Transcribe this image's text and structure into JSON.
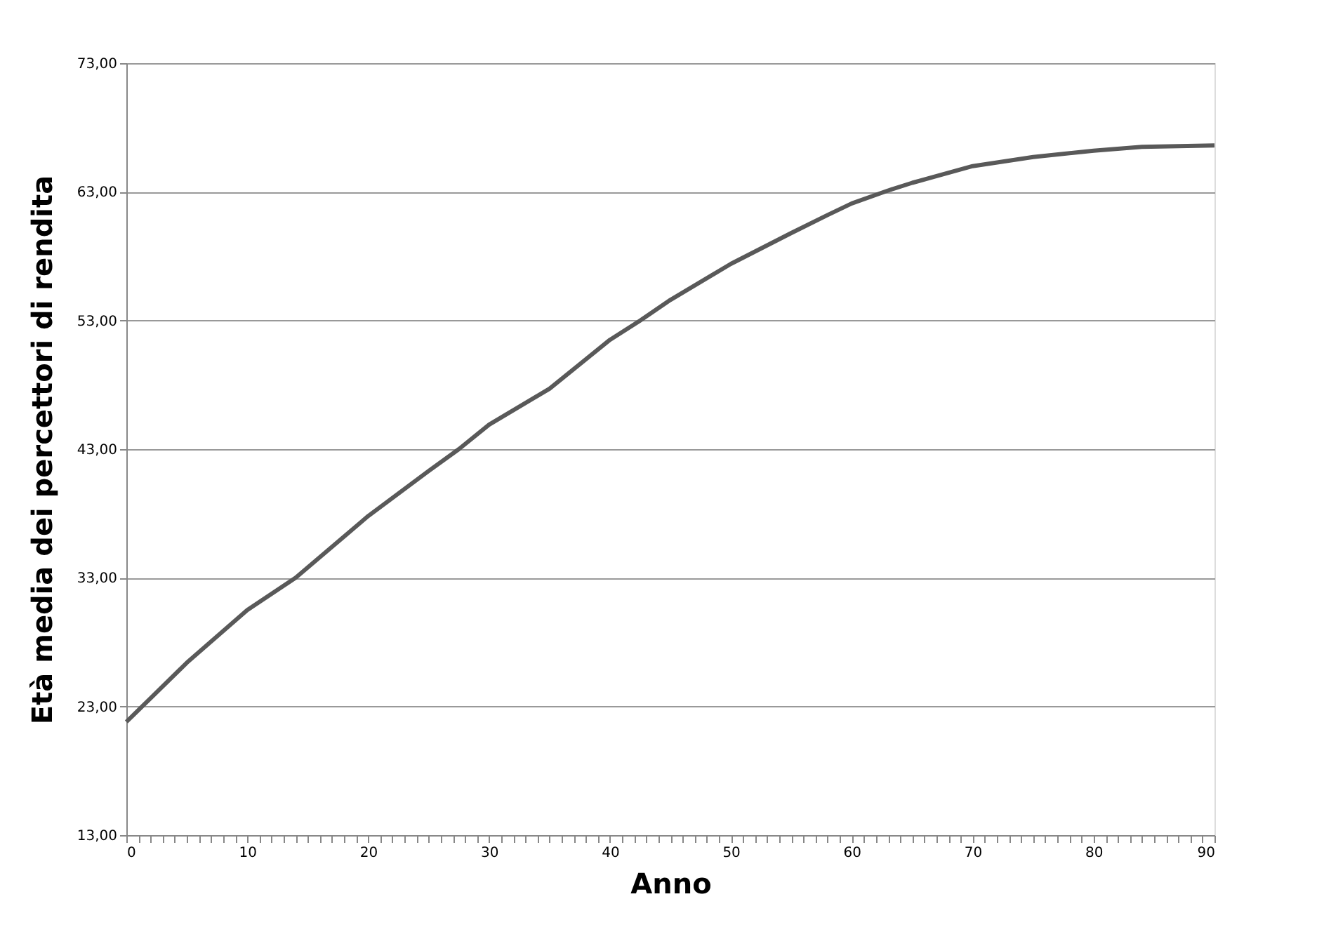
{
  "chart_data": {
    "type": "line",
    "xlabel": "Anno",
    "ylabel": "Età media dei percettori di rendita",
    "x": [
      0,
      5,
      10,
      14,
      20,
      25,
      27.5,
      30,
      35,
      40,
      42.5,
      45,
      50,
      55,
      58,
      60,
      63,
      65,
      70,
      75,
      80,
      84,
      90
    ],
    "series": [
      {
        "color": "#595959",
        "values": [
          21.8,
          26.4,
          30.5,
          33.0,
          37.8,
          41.3,
          43.0,
          44.9,
          47.7,
          51.5,
          53.0,
          54.6,
          57.4,
          59.8,
          61.2,
          62.1,
          63.1,
          63.7,
          65.0,
          65.7,
          66.2,
          66.5,
          66.6
        ]
      }
    ],
    "xlim": [
      0,
      90
    ],
    "xticks": [
      0,
      {
        "value": 1,
        "label": null
      },
      {
        "value": 2,
        "label": null
      },
      {
        "value": 3,
        "label": null
      },
      {
        "value": 4,
        "label": null
      },
      {
        "value": 5,
        "label": null
      },
      {
        "value": 6,
        "label": null
      },
      {
        "value": 7,
        "label": null
      },
      {
        "value": 8,
        "label": null
      },
      {
        "value": 9,
        "label": null
      },
      10,
      {
        "value": 11,
        "label": null
      },
      {
        "value": 12,
        "label": null
      },
      {
        "value": 13,
        "label": null
      },
      {
        "value": 14,
        "label": null
      },
      {
        "value": 15,
        "label": null
      },
      {
        "value": 16,
        "label": null
      },
      {
        "value": 17,
        "label": null
      },
      {
        "value": 18,
        "label": null
      },
      {
        "value": 19,
        "label": null
      },
      20,
      {
        "value": 21,
        "label": null
      },
      {
        "value": 22,
        "label": null
      },
      {
        "value": 23,
        "label": null
      },
      {
        "value": 24,
        "label": null
      },
      {
        "value": 25,
        "label": null
      },
      {
        "value": 26,
        "label": null
      },
      {
        "value": 27,
        "label": null
      },
      {
        "value": 28,
        "label": null
      },
      {
        "value": 29,
        "label": null
      },
      30,
      {
        "value": 31,
        "label": null
      },
      {
        "value": 32,
        "label": null
      },
      {
        "value": 33,
        "label": null
      },
      {
        "value": 34,
        "label": null
      },
      {
        "value": 35,
        "label": null
      },
      {
        "value": 36,
        "label": null
      },
      {
        "value": 37,
        "label": null
      },
      {
        "value": 38,
        "label": null
      },
      {
        "value": 39,
        "label": null
      },
      40,
      {
        "value": 41,
        "label": null
      },
      {
        "value": 42,
        "label": null
      },
      {
        "value": 43,
        "label": null
      },
      {
        "value": 44,
        "label": null
      },
      {
        "value": 45,
        "label": null
      },
      {
        "value": 46,
        "label": null
      },
      {
        "value": 47,
        "label": null
      },
      {
        "value": 48,
        "label": null
      },
      {
        "value": 49,
        "label": null
      },
      50,
      {
        "value": 51,
        "label": null
      },
      {
        "value": 52,
        "label": null
      },
      {
        "value": 53,
        "label": null
      },
      {
        "value": 54,
        "label": null
      },
      {
        "value": 55,
        "label": null
      },
      {
        "value": 56,
        "label": null
      },
      {
        "value": 57,
        "label": null
      },
      {
        "value": 58,
        "label": null
      },
      {
        "value": 59,
        "label": null
      },
      60,
      {
        "value": 61,
        "label": null
      },
      {
        "value": 62,
        "label": null
      },
      {
        "value": 63,
        "label": null
      },
      {
        "value": 64,
        "label": null
      },
      {
        "value": 65,
        "label": null
      },
      {
        "value": 66,
        "label": null
      },
      {
        "value": 67,
        "label": null
      },
      {
        "value": 68,
        "label": null
      },
      {
        "value": 69,
        "label": null
      },
      70,
      {
        "value": 71,
        "label": null
      },
      {
        "value": 72,
        "label": null
      },
      {
        "value": 73,
        "label": null
      },
      {
        "value": 74,
        "label": null
      },
      {
        "value": 75,
        "label": null
      },
      {
        "value": 76,
        "label": null
      },
      {
        "value": 77,
        "label": null
      },
      {
        "value": 78,
        "label": null
      },
      {
        "value": 79,
        "label": null
      },
      80,
      {
        "value": 81,
        "label": null
      },
      {
        "value": 82,
        "label": null
      },
      {
        "value": 83,
        "label": null
      },
      {
        "value": 84,
        "label": null
      },
      {
        "value": 85,
        "label": null
      },
      {
        "value": 86,
        "label": null
      },
      {
        "value": 87,
        "label": null
      },
      {
        "value": 88,
        "label": null
      },
      {
        "value": 89,
        "label": null
      },
      90
    ],
    "ylim": [
      13,
      73
    ],
    "yticks": [
      {
        "value": 13,
        "label": "13,00"
      },
      {
        "value": 23,
        "label": "23,00"
      },
      {
        "value": 33,
        "label": "33,00"
      },
      {
        "value": 43,
        "label": "43,00"
      },
      {
        "value": 53,
        "label": "53,00"
      },
      {
        "value": 63,
        "label": "63,00"
      },
      {
        "value": 73,
        "label": "73,00"
      }
    ],
    "grid": "y",
    "legend": false,
    "marker": "none",
    "line_style": "solid"
  }
}
